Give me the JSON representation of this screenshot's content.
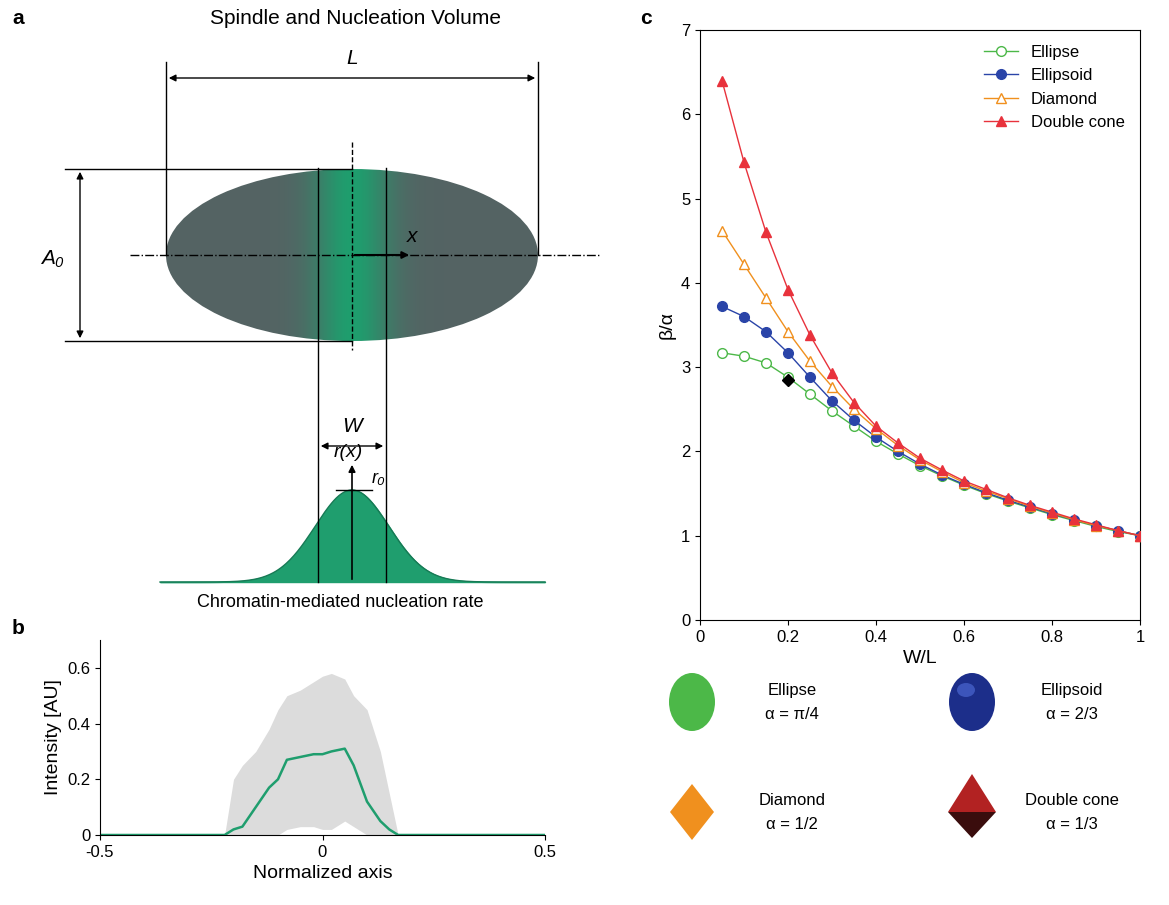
{
  "diagram": {
    "panel": "a",
    "title": "Spindle and Nucleation Volume",
    "labels": {
      "length": "L",
      "height": "A₀",
      "axis": "x",
      "band": "W",
      "rate": "r(x)",
      "peak": "r₀"
    },
    "caption": "Chromatin-mediated nucleation rate"
  },
  "chart_data": [
    {
      "panel": "b",
      "type": "line",
      "xlabel": "Normalized axis",
      "ylabel": "Intensity [AU]",
      "x": [
        -0.5,
        -0.22,
        -0.2,
        -0.18,
        -0.15,
        -0.12,
        -0.1,
        -0.08,
        -0.05,
        -0.02,
        0,
        0.02,
        0.05,
        0.07,
        0.1,
        0.13,
        0.15,
        0.17,
        0.5
      ],
      "series": [
        {
          "type": "area",
          "color": "#dcdcdc",
          "lower": [
            0,
            0,
            0,
            0,
            0,
            0,
            0,
            0.02,
            0.03,
            0.03,
            0.02,
            0.02,
            0.05,
            0.03,
            0,
            0,
            0,
            0,
            0
          ],
          "upper": [
            0,
            0,
            0.2,
            0.25,
            0.3,
            0.38,
            0.45,
            0.5,
            0.52,
            0.55,
            0.57,
            0.58,
            0.56,
            0.5,
            0.45,
            0.3,
            0.15,
            0,
            0
          ]
        },
        {
          "type": "line",
          "color": "#1f9e6e",
          "values": [
            0,
            0,
            0.02,
            0.03,
            0.1,
            0.17,
            0.2,
            0.27,
            0.28,
            0.29,
            0.29,
            0.3,
            0.31,
            0.25,
            0.12,
            0.05,
            0.02,
            0,
            0
          ]
        }
      ],
      "xlim": [
        -0.5,
        0.5
      ],
      "xticks": [
        -0.5,
        0,
        0.5
      ],
      "ylim": [
        0,
        0.7
      ],
      "yticks": [
        0,
        0.2,
        0.4,
        0.6
      ]
    },
    {
      "panel": "c",
      "type": "line",
      "xlabel": "W/L",
      "ylabel": "β/α",
      "legend": "upper right",
      "x": [
        0.05,
        0.1,
        0.15,
        0.2,
        0.25,
        0.3,
        0.35,
        0.4,
        0.45,
        0.5,
        0.55,
        0.6,
        0.65,
        0.7,
        0.75,
        0.8,
        0.85,
        0.9,
        0.95,
        1.0
      ],
      "series": [
        {
          "name": "Ellipse",
          "color": "#4cb848",
          "marker": "open_circle",
          "values": [
            3.17,
            3.13,
            3.05,
            2.88,
            2.68,
            2.48,
            2.3,
            2.12,
            1.97,
            1.83,
            1.71,
            1.6,
            1.5,
            1.41,
            1.33,
            1.25,
            1.18,
            1.11,
            1.05,
            1.0
          ]
        },
        {
          "name": "Ellipsoid",
          "color": "#2a44a8",
          "marker": "circle",
          "values": [
            3.72,
            3.6,
            3.42,
            3.17,
            2.88,
            2.6,
            2.37,
            2.17,
            2.0,
            1.85,
            1.72,
            1.61,
            1.51,
            1.42,
            1.34,
            1.26,
            1.19,
            1.12,
            1.06,
            1.0
          ]
        },
        {
          "name": "Diamond",
          "color": "#f0901e",
          "marker": "open_triangle",
          "values": [
            4.62,
            4.22,
            3.82,
            3.42,
            3.07,
            2.77,
            2.5,
            2.27,
            2.07,
            1.9,
            1.76,
            1.63,
            1.53,
            1.44,
            1.35,
            1.27,
            1.19,
            1.12,
            1.06,
            1.0
          ]
        },
        {
          "name": "Double cone",
          "color": "#e8323c",
          "marker": "triangle",
          "values": [
            6.4,
            5.43,
            4.6,
            3.92,
            3.38,
            2.93,
            2.58,
            2.3,
            2.1,
            1.92,
            1.78,
            1.65,
            1.55,
            1.45,
            1.36,
            1.28,
            1.2,
            1.13,
            1.06,
            1.0
          ]
        },
        {
          "color": "#000000",
          "marker": "diamond",
          "x": [
            0.2
          ],
          "values": [
            2.85
          ]
        }
      ],
      "xlim": [
        0,
        1
      ],
      "xticks": [
        0,
        0.2,
        0.4,
        0.6,
        0.8,
        1
      ],
      "ylim": [
        0,
        7
      ],
      "yticks": [
        0,
        1,
        2,
        3,
        4,
        5,
        6,
        7
      ],
      "shapes": [
        {
          "name": "Ellipse",
          "label": "α = π/4",
          "color": "#4cb848"
        },
        {
          "name": "Ellipsoid",
          "label": "α = 2/3",
          "color": "#1c2e8a"
        },
        {
          "name": "Diamond",
          "label": "α = 1/2",
          "color": "#f0901e"
        },
        {
          "name": "Double cone",
          "label": "α = 1/3",
          "color": "#b22222"
        }
      ]
    }
  ]
}
